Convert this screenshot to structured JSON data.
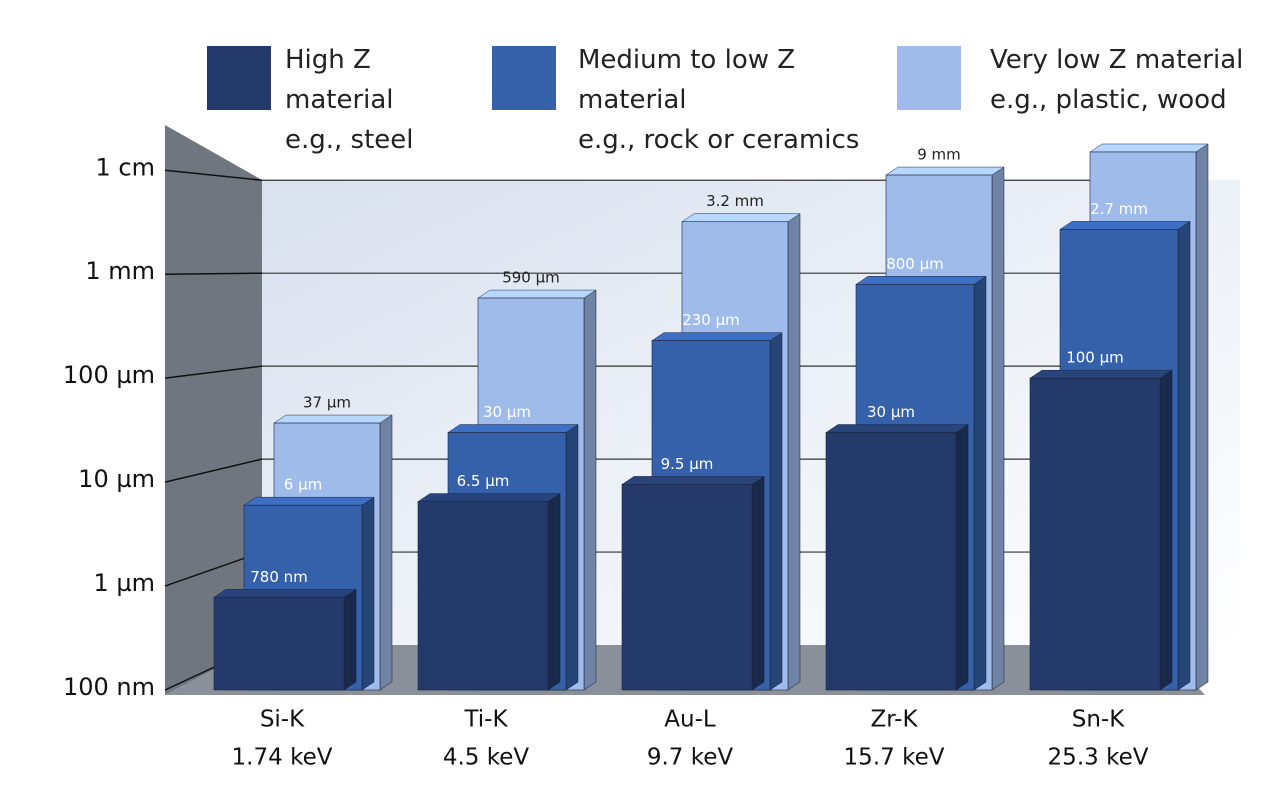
{
  "chart_data": {
    "type": "bar",
    "categories": [
      [
        "Si-K",
        "1.74 keV"
      ],
      [
        "Ti-K",
        "4.5 keV"
      ],
      [
        "Au-L",
        "9.7 keV"
      ],
      [
        "Zr-K",
        "15.7 keV"
      ],
      [
        "Sn-K",
        "25.3 keV"
      ]
    ],
    "series": [
      {
        "name": "High Z material",
        "example": "e.g., steel",
        "color": "#243a6b",
        "values": [
          0.78,
          6.5,
          9.5,
          30,
          100
        ],
        "value_labels": [
          "780 nm",
          "6.5 µm",
          "9.5 µm",
          "30 µm",
          "100 µm"
        ]
      },
      {
        "name": "Medium to low Z material",
        "example": "e.g., rock or ceramics",
        "color": "#3561aa",
        "values": [
          6,
          30,
          230,
          800,
          2700
        ],
        "value_labels": [
          "6 µm",
          "30 µm",
          "230 µm",
          "800 µm",
          "2.7 mm"
        ]
      },
      {
        "name": "Very low Z material",
        "example": "e.g., plastic, wood",
        "color": "#9fbbea",
        "values": [
          37,
          590,
          3200,
          9000,
          15000
        ],
        "value_labels": [
          "37 µm",
          "590 µm",
          "3.2 mm",
          "9 mm",
          null
        ]
      }
    ],
    "yscale": "log",
    "ylim": [
      0.1,
      20000
    ],
    "yticks": [
      {
        "value": 0.1,
        "label": "100 nm"
      },
      {
        "value": 1,
        "label": "1 µm"
      },
      {
        "value": 10,
        "label": "10 µm"
      },
      {
        "value": 100,
        "label": "100 µm"
      },
      {
        "value": 1000,
        "label": "1 mm"
      },
      {
        "value": 10000,
        "label": "1 cm"
      }
    ],
    "grid": true
  }
}
